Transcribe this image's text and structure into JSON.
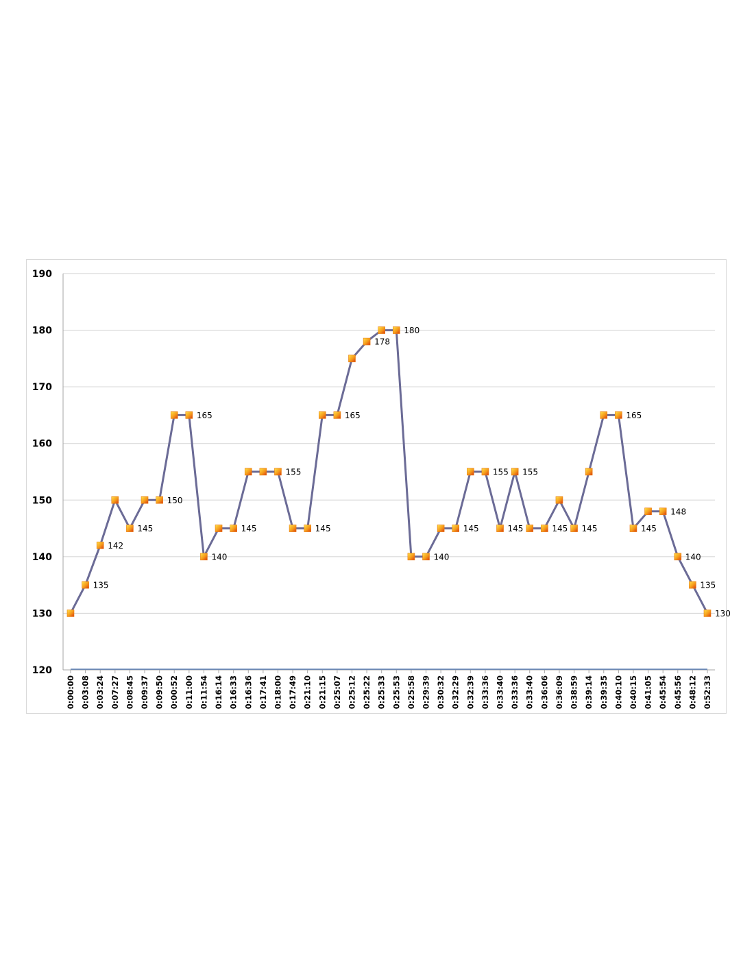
{
  "chart_data": {
    "type": "line",
    "title": "",
    "xlabel": "",
    "ylabel": "",
    "ylim": [
      120,
      190
    ],
    "yticks": [
      120,
      130,
      140,
      150,
      160,
      170,
      180,
      190
    ],
    "grid": true,
    "legend": "none",
    "categories": [
      "0:00:00",
      "0:03:08",
      "0:03:24",
      "0:07:27",
      "0:08:45",
      "0:09:37",
      "0:09:50",
      "0:00:52",
      "0:11:00",
      "0:11:54",
      "0:16:14",
      "0:16:33",
      "0:16:36",
      "0:17:41",
      "0:18:00",
      "0:17:49",
      "0:21:10",
      "0:21:15",
      "0:25:07",
      "0:25:12",
      "0:25:22",
      "0:25:33",
      "0:25:53",
      "0:25:58",
      "0:29:39",
      "0:30:32",
      "0:32:29",
      "0:32:39",
      "0:33:36",
      "0:33:40",
      "0:33:36",
      "0:33:40",
      "0:36:06",
      "0:36:09",
      "0:38:59",
      "0:39:14",
      "0:39:35",
      "0:40:10",
      "0:40:15",
      "0:41:05",
      "0:45:54",
      "0:45:56",
      "0:48:12",
      "0:52:33"
    ],
    "series": [
      {
        "values": [
          130,
          135,
          142,
          150,
          145,
          150,
          150,
          165,
          165,
          140,
          145,
          145,
          155,
          155,
          155,
          145,
          145,
          165,
          165,
          175,
          178,
          180,
          180,
          140,
          140,
          145,
          145,
          155,
          155,
          145,
          155,
          145,
          145,
          150,
          145,
          155,
          165,
          165,
          145,
          148,
          148,
          140,
          135,
          130
        ],
        "line_color": "#6b6b96",
        "marker_color": "#f08010"
      }
    ],
    "data_labels": [
      {
        "index": 1,
        "text": "135"
      },
      {
        "index": 2,
        "text": "142"
      },
      {
        "index": 4,
        "text": "145"
      },
      {
        "index": 6,
        "text": "150"
      },
      {
        "index": 8,
        "text": "165"
      },
      {
        "index": 9,
        "text": "140"
      },
      {
        "index": 11,
        "text": "145"
      },
      {
        "index": 14,
        "text": "155"
      },
      {
        "index": 16,
        "text": "145"
      },
      {
        "index": 18,
        "text": "165"
      },
      {
        "index": 20,
        "text": "178"
      },
      {
        "index": 22,
        "text": "180"
      },
      {
        "index": 24,
        "text": "140"
      },
      {
        "index": 26,
        "text": "145"
      },
      {
        "index": 28,
        "text": "155"
      },
      {
        "index": 29,
        "text": "145"
      },
      {
        "index": 30,
        "text": "155"
      },
      {
        "index": 32,
        "text": "145"
      },
      {
        "index": 34,
        "text": "145"
      },
      {
        "index": 37,
        "text": "165"
      },
      {
        "index": 38,
        "text": "145"
      },
      {
        "index": 40,
        "text": "148"
      },
      {
        "index": 41,
        "text": "140"
      },
      {
        "index": 42,
        "text": "135"
      },
      {
        "index": 43,
        "text": "130"
      }
    ]
  }
}
